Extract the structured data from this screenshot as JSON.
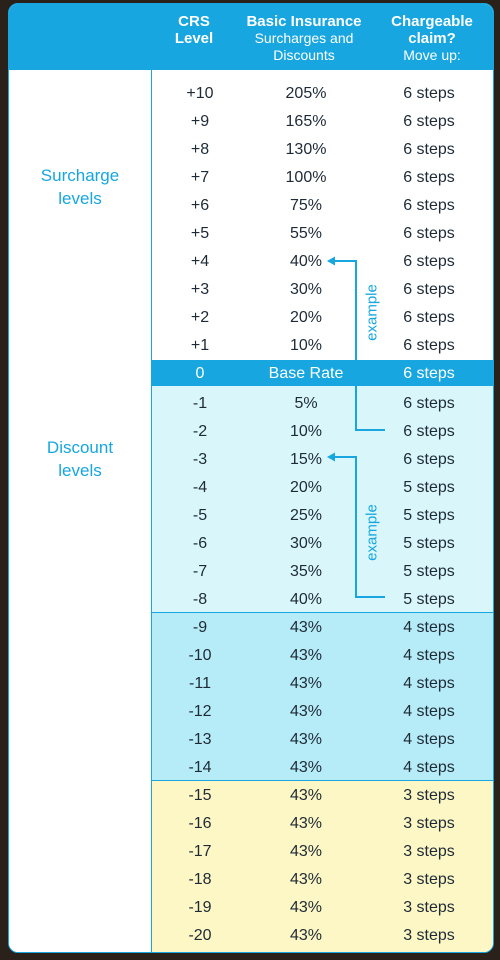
{
  "header": {
    "col1": {
      "bold": "CRS",
      "line2": "Level"
    },
    "col2": {
      "bold": "Basic Insurance",
      "line2": "Surcharges and",
      "line3": "Discounts"
    },
    "col3": {
      "bold": "Chargeable",
      "line1b": "claim?",
      "line2": "Move up:"
    }
  },
  "sidebar": {
    "surcharge": {
      "line1": "Surcharge",
      "line2": "levels"
    },
    "discount": {
      "line1": "Discount",
      "line2": "levels"
    }
  },
  "annotations": {
    "example_upper": "example",
    "example_lower": "example"
  },
  "colors": {
    "accent": "#17a6e0",
    "discount_band": "#d9f7fb",
    "four_step_band": "#b6ecf7",
    "three_step_band": "#fcf7c5",
    "text": "#1e2a36"
  },
  "rows": [
    {
      "level": "+10",
      "rate": "205%",
      "move": "6 steps"
    },
    {
      "level": "+9",
      "rate": "165%",
      "move": "6 steps"
    },
    {
      "level": "+8",
      "rate": "130%",
      "move": "6 steps"
    },
    {
      "level": "+7",
      "rate": "100%",
      "move": "6 steps"
    },
    {
      "level": "+6",
      "rate": "75%",
      "move": "6 steps"
    },
    {
      "level": "+5",
      "rate": "55%",
      "move": "6 steps"
    },
    {
      "level": "+4",
      "rate": "40%",
      "move": "6 steps"
    },
    {
      "level": "+3",
      "rate": "30%",
      "move": "6 steps"
    },
    {
      "level": "+2",
      "rate": "20%",
      "move": "6 steps"
    },
    {
      "level": "+1",
      "rate": "10%",
      "move": "6 steps"
    },
    {
      "level": "0",
      "rate": "Base Rate",
      "move": "6 steps"
    },
    {
      "level": "-1",
      "rate": "5%",
      "move": "6 steps"
    },
    {
      "level": "-2",
      "rate": "10%",
      "move": "6 steps"
    },
    {
      "level": "-3",
      "rate": "15%",
      "move": "6 steps"
    },
    {
      "level": "-4",
      "rate": "20%",
      "move": "5 steps"
    },
    {
      "level": "-5",
      "rate": "25%",
      "move": "5 steps"
    },
    {
      "level": "-6",
      "rate": "30%",
      "move": "5 steps"
    },
    {
      "level": "-7",
      "rate": "35%",
      "move": "5 steps"
    },
    {
      "level": "-8",
      "rate": "40%",
      "move": "5 steps"
    },
    {
      "level": "-9",
      "rate": "43%",
      "move": "4 steps"
    },
    {
      "level": "-10",
      "rate": "43%",
      "move": "4 steps"
    },
    {
      "level": "-11",
      "rate": "43%",
      "move": "4 steps"
    },
    {
      "level": "-12",
      "rate": "43%",
      "move": "4 steps"
    },
    {
      "level": "-13",
      "rate": "43%",
      "move": "4 steps"
    },
    {
      "level": "-14",
      "rate": "43%",
      "move": "4 steps"
    },
    {
      "level": "-15",
      "rate": "43%",
      "move": "3 steps"
    },
    {
      "level": "-16",
      "rate": "43%",
      "move": "3 steps"
    },
    {
      "level": "-17",
      "rate": "43%",
      "move": "3 steps"
    },
    {
      "level": "-18",
      "rate": "43%",
      "move": "3 steps"
    },
    {
      "level": "-19",
      "rate": "43%",
      "move": "3 steps"
    },
    {
      "level": "-20",
      "rate": "43%",
      "move": "3 steps"
    }
  ]
}
